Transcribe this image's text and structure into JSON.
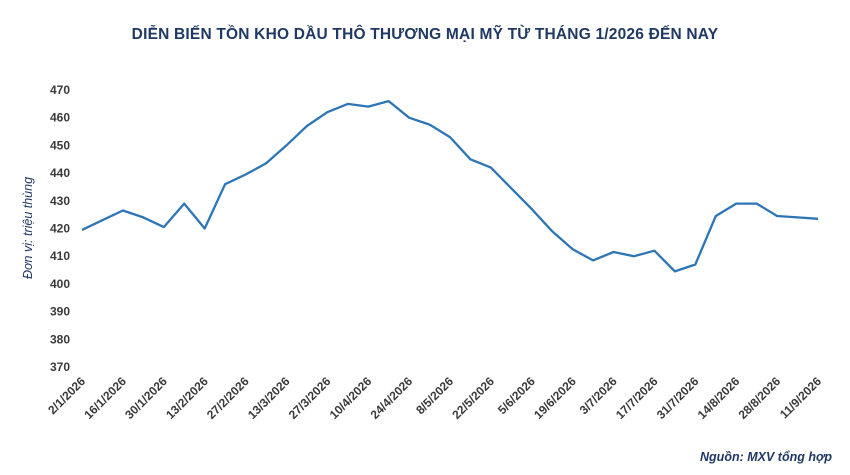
{
  "chart_data": {
    "type": "line",
    "title": "DIỄN BIẾN TỒN KHO DẦU THÔ THƯƠNG MẠI MỸ TỪ THÁNG 1/2026 ĐẾN NAY",
    "ylabel": "Đơn vị: triệu thùng",
    "xlabel": "",
    "source": "Nguồn: MXV tổng hợp",
    "ylim": [
      370,
      470
    ],
    "yticks": [
      370,
      380,
      390,
      400,
      410,
      420,
      430,
      440,
      450,
      460,
      470
    ],
    "grid": false,
    "line_color": "#2e75b6",
    "x": [
      "2/1/2026",
      "9/1/2026",
      "16/1/2026",
      "23/1/2026",
      "30/1/2026",
      "6/2/2026",
      "13/2/2026",
      "20/2/2026",
      "27/2/2026",
      "6/3/2026",
      "13/3/2026",
      "20/3/2026",
      "27/3/2026",
      "3/4/2026",
      "10/4/2026",
      "17/4/2026",
      "24/4/2026",
      "1/5/2026",
      "8/5/2026",
      "15/5/2026",
      "22/5/2026",
      "29/5/2026",
      "5/6/2026",
      "12/6/2026",
      "19/6/2026",
      "26/6/2026",
      "3/7/2026",
      "10/7/2026",
      "17/7/2026",
      "24/7/2026",
      "31/7/2026",
      "7/8/2026",
      "14/8/2026",
      "21/8/2026",
      "28/8/2026",
      "4/9/2026",
      "11/9/2026"
    ],
    "x_tick_labels": [
      "2/1/2026",
      "16/1/2026",
      "30/1/2026",
      "13/2/2026",
      "27/2/2026",
      "13/3/2026",
      "27/3/2026",
      "10/4/2026",
      "24/4/2026",
      "8/5/2026",
      "22/5/2026",
      "5/6/2026",
      "19/6/2026",
      "3/7/2026",
      "17/7/2026",
      "31/7/2026",
      "14/8/2026",
      "28/8/2026",
      "11/9/2026"
    ],
    "values": [
      419.5,
      423,
      426.5,
      424,
      420.5,
      429,
      420,
      436,
      439.5,
      443.5,
      450,
      457,
      462,
      465,
      464,
      466,
      460,
      457.5,
      453,
      445,
      442,
      434.5,
      427,
      419,
      412.5,
      408.5,
      411.5,
      410,
      412,
      404.5,
      407,
      424.5,
      429,
      429,
      424.5,
      424,
      423.5
    ]
  }
}
